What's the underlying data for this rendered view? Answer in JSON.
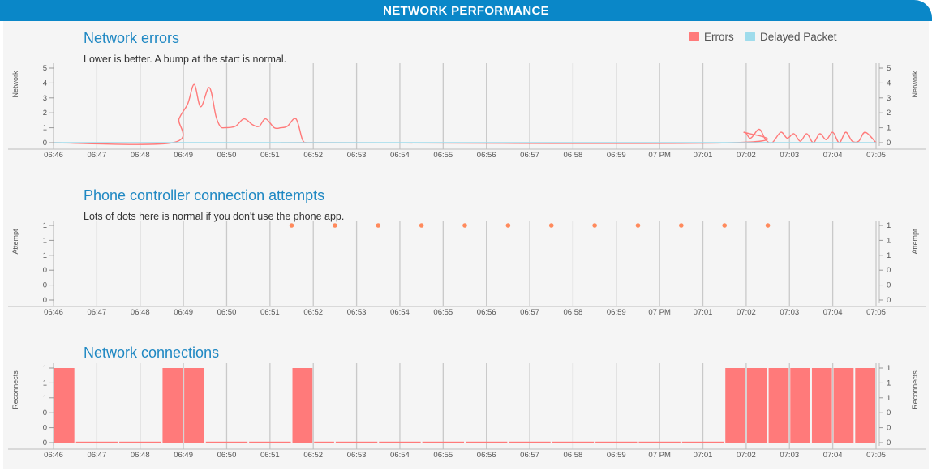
{
  "header": {
    "title": "NETWORK PERFORMANCE"
  },
  "colors": {
    "errors": "#ff7a7a",
    "delayed": "#9fdcec",
    "dots": "#ff8a5c",
    "bars": "#ff7a7a",
    "accent": "#0a87c8"
  },
  "chart_data": [
    {
      "type": "line",
      "title": "Network errors",
      "subtitle": "Lower is better. A bump at the start is normal.",
      "ylabel_left": "Network",
      "ylabel_right": "Network",
      "x_ticks": [
        "06:46",
        "06:47",
        "06:48",
        "06:49",
        "06:50",
        "06:51",
        "06:52",
        "06:53",
        "06:54",
        "06:55",
        "06:56",
        "06:57",
        "06:58",
        "06:59",
        "07 PM",
        "07:01",
        "07:02",
        "07:03",
        "07:04",
        "07:05"
      ],
      "y_ticks": [
        "0",
        "1",
        "2",
        "3",
        "4",
        "5"
      ],
      "ylim": [
        0,
        5
      ],
      "legend": {
        "position": "top-right",
        "entries": [
          "Errors",
          "Delayed Packet"
        ]
      },
      "series": [
        {
          "name": "Errors",
          "color": "#ff7a7a",
          "x": [
            0,
            2.75,
            2.9,
            3.1,
            3.25,
            3.4,
            3.6,
            3.75,
            3.85,
            3.95,
            4.2,
            4.4,
            4.6,
            4.75,
            4.9,
            5.1,
            5.25,
            5.4,
            5.6,
            5.75,
            5.85,
            6.0,
            15.7,
            15.95,
            16.1,
            16.3,
            16.45,
            16.6,
            16.8,
            16.95,
            17.1,
            17.25,
            17.4,
            17.55,
            17.7,
            17.85,
            18.0,
            18.15,
            18.3,
            18.45,
            18.6,
            18.75,
            19.0
          ],
          "y": [
            0,
            0,
            1.6,
            2.6,
            3.9,
            2.4,
            3.7,
            1.8,
            1.1,
            1.0,
            1.1,
            1.6,
            1.2,
            1.1,
            1.6,
            1.0,
            1.0,
            1.1,
            1.6,
            0.2,
            0,
            0,
            0,
            0.7,
            0.3,
            0.9,
            0.2,
            0,
            0.7,
            0.3,
            0.6,
            0.1,
            0.6,
            0,
            0.6,
            0.2,
            0.7,
            0,
            0.7,
            0.1,
            0.1,
            0.7,
            0
          ]
        },
        {
          "name": "Delayed Packet",
          "color": "#9fdcec",
          "x": [
            0,
            19
          ],
          "y": [
            0,
            0
          ]
        }
      ]
    },
    {
      "type": "scatter",
      "title": "Phone controller connection attempts",
      "subtitle": "Lots of dots here is normal if you don't use the phone app.",
      "ylabel_left": "Attempt",
      "ylabel_right": "Attempt",
      "x_ticks": [
        "06:46",
        "06:47",
        "06:48",
        "06:49",
        "06:50",
        "06:51",
        "06:52",
        "06:53",
        "06:54",
        "06:55",
        "06:56",
        "06:57",
        "06:58",
        "06:59",
        "07 PM",
        "07:01",
        "07:02",
        "07:03",
        "07:04",
        "07:05"
      ],
      "y_ticks": [
        "0",
        "0",
        "0",
        "1",
        "1",
        "1"
      ],
      "ylim": [
        0,
        1
      ],
      "points": {
        "x": [
          5.5,
          6.5,
          7.5,
          8.5,
          9.5,
          10.5,
          11.5,
          12.5,
          13.5,
          14.5,
          15.5,
          16.5
        ],
        "y": [
          1,
          1,
          1,
          1,
          1,
          1,
          1,
          1,
          1,
          1,
          1,
          1
        ]
      }
    },
    {
      "type": "bar",
      "title": "Network connections",
      "ylabel_left": "Reconnects",
      "ylabel_right": "Reconnects",
      "x_ticks": [
        "06:46",
        "06:47",
        "06:48",
        "06:49",
        "06:50",
        "06:51",
        "06:52",
        "06:53",
        "06:54",
        "06:55",
        "06:56",
        "06:57",
        "06:58",
        "06:59",
        "07 PM",
        "07:01",
        "07:02",
        "07:03",
        "07:04",
        "07:05"
      ],
      "y_ticks": [
        "0",
        "0",
        "0",
        "1",
        "1",
        "1"
      ],
      "ylim": [
        0,
        1
      ],
      "bars": {
        "start": [
          0,
          0.5,
          1.5,
          2.5,
          3.0,
          3.5,
          4.5,
          5.5,
          6.0,
          6.5,
          7.5,
          8.5,
          9.5,
          10.5,
          11.5,
          12.5,
          13.5,
          14.5,
          15.5,
          16.0,
          16.5,
          17.0,
          17.5,
          18.0,
          18.5
        ],
        "end": [
          0.5,
          1.5,
          2.5,
          3.0,
          3.5,
          4.5,
          5.5,
          6.0,
          6.5,
          7.5,
          8.5,
          9.5,
          10.5,
          11.5,
          12.5,
          13.5,
          14.5,
          15.5,
          16.0,
          16.5,
          17.0,
          17.5,
          18.0,
          18.5,
          19.0
        ],
        "values": [
          1,
          0,
          0,
          1,
          1,
          0,
          0,
          1,
          0,
          0,
          0,
          0,
          0,
          0,
          0,
          0,
          0,
          0,
          1,
          1,
          1,
          1,
          1,
          1,
          1
        ]
      }
    }
  ]
}
